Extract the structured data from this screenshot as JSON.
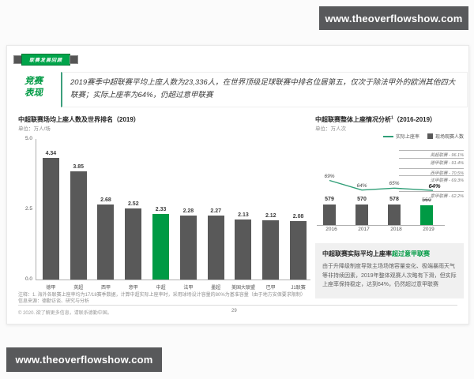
{
  "page": {
    "top_url": "www.theoverflowshow.com",
    "bottom_url": "www.theoverflowshow.com"
  },
  "slide": {
    "ribbon_label": "联赛发展回顾",
    "section_label_line1": "竞赛",
    "section_label_line2": "表现",
    "headline": "2019赛季中超联赛平均上座人数为23,336人，在世界顶级足球联赛中排名位居第五，仅次于除法甲外的欧洲其他四大联赛；实际上座率为64%，仍超过意甲联赛",
    "footnote_line1": "注释：1. 海外各联赛上座率均为17/18赛季数据，计算中超实际上座率时，采用球场设计容量的80%为基准容量（由于地方安保要求限制）",
    "footnote_line2": "信息来源：德勤访谈、研究与分析",
    "copyright": "© 2020. 欲了解更多信息，请联系德勤中国。",
    "page_number": "29"
  },
  "callout": {
    "title_dark": "中超联赛实际平均上座率",
    "title_green": "超过意甲联赛",
    "body": "由于升降级制度导致主场场馆容量变化、极端暴雨天气等非持续因素，2019年整体观赛人次略有下滑，但实际上座率保持稳定，达到64%，仍然超过意甲联赛"
  },
  "colors": {
    "accent_green": "#009A44",
    "line_green": "#2F9E77",
    "bar_gray": "#595959",
    "url_bar_gray": "#58595B"
  },
  "chart_data": [
    {
      "type": "bar",
      "title": "中超联赛场均上座人数及世界排名（2019）",
      "unit": "单位：万人/场",
      "categories": [
        "德甲",
        "英超",
        "西甲",
        "意甲",
        "中超",
        "法甲",
        "墨超",
        "美国大联盟",
        "巴甲",
        "J1联赛"
      ],
      "values": [
        4.34,
        3.85,
        2.68,
        2.52,
        2.33,
        2.28,
        2.27,
        2.13,
        2.12,
        2.08
      ],
      "highlight_category": "中超",
      "yticks": [
        "5.0",
        "2.5",
        "0.0"
      ],
      "ylim": [
        0,
        5
      ],
      "grid": false
    },
    {
      "type": "bar",
      "title": "中超联赛整体上座情况分析",
      "title_sup": "1",
      "title_years": "（2016-2019）",
      "unit": "单位：万人次",
      "categories": [
        "2016",
        "2017",
        "2018",
        "2019"
      ],
      "series": [
        {
          "name": "现场观赛人数",
          "type": "bar",
          "values": [
            579,
            570,
            578,
            560
          ]
        },
        {
          "name": "实际上座率",
          "type": "line",
          "unit": "%",
          "values": [
            69,
            64,
            65,
            64
          ]
        }
      ],
      "highlight_category": "2019",
      "legend": [
        {
          "label": "实际上座率",
          "swatch": "line"
        },
        {
          "label": "现场观赛人数",
          "swatch": "bar"
        }
      ],
      "legend_position": "top-right",
      "annotations": [
        {
          "label": "英超联赛 - 96.1%",
          "pct": 96.1
        },
        {
          "label": "德甲联赛 - 91.4%",
          "pct": 91.4
        },
        {
          "label": "西甲联赛 - 70.5%",
          "pct": 70.5
        },
        {
          "label": "法甲联赛 - 69.3%",
          "pct": 69.3
        },
        {
          "label": "意甲联赛 - 62.2%",
          "pct": 62.2
        }
      ]
    }
  ]
}
